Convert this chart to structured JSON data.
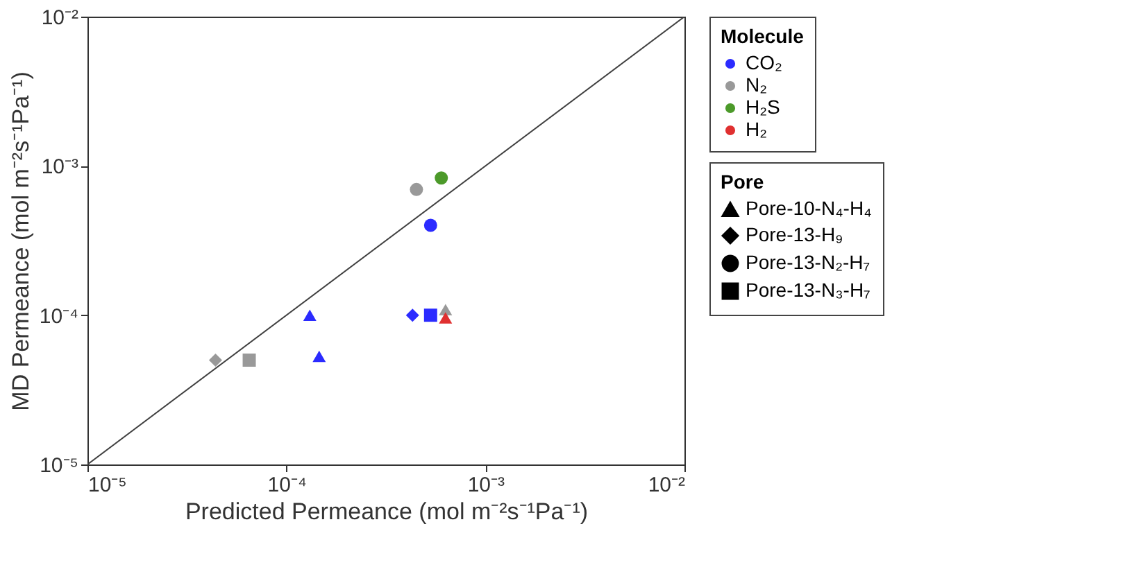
{
  "chart_data": {
    "type": "scatter",
    "xlabel": "Predicted Permeance (mol m⁻²s⁻¹Pa⁻¹)",
    "ylabel": "MD Permeance (mol m⁻²s⁻¹Pa⁻¹)",
    "legend_title": [
      "Molecule",
      "Pore"
    ],
    "log": "xy",
    "xlim": [
      1e-05,
      0.01
    ],
    "ylim": [
      1e-05,
      0.01
    ],
    "xticks": [
      {
        "value": 1e-05,
        "label": "10⁻⁵"
      },
      {
        "value": 0.0001,
        "label": "10⁻⁴"
      },
      {
        "value": 0.001,
        "label": "10⁻³"
      },
      {
        "value": 0.01,
        "label": "10⁻²"
      }
    ],
    "yticks": [
      {
        "value": 1e-05,
        "label": "10⁻⁵"
      },
      {
        "value": 0.0001,
        "label": "10⁻⁴"
      },
      {
        "value": 0.001,
        "label": "10⁻³"
      },
      {
        "value": 0.01,
        "label": "10⁻²"
      }
    ],
    "legend": "right",
    "series": [
      {
        "name": "CO₂",
        "color": "#2b2bff",
        "x": [
          0.000131,
          0.000146,
          0.00043,
          0.00053,
          0.00053
        ],
        "values": [
          0.0001,
          5.3e-05,
          0.0001,
          0.0004,
          0.0001
        ],
        "marker": [
          "triangle",
          "triangle",
          "diamond",
          "circle",
          "square"
        ]
      },
      {
        "name": "N₂",
        "color": "#999999",
        "x": [
          0.00063,
          4.4e-05,
          0.00045,
          6.5e-05
        ],
        "values": [
          0.000109,
          5e-05,
          0.000695,
          5e-05
        ],
        "marker": [
          "triangle",
          "diamond",
          "circle",
          "square"
        ]
      },
      {
        "name": "H₂S",
        "color": "#4c9a2a",
        "x": [
          0.0006
        ],
        "values": [
          0.00083
        ],
        "marker": [
          "circle"
        ]
      },
      {
        "name": "H₂",
        "color": "#e03030",
        "x": [
          0.00063
        ],
        "values": [
          9.6e-05
        ],
        "marker": [
          "triangle"
        ]
      },
      {
        "name": "Pore-10-N₄-H₄",
        "marker": "triangle",
        "color": "#000000"
      },
      {
        "name": "Pore-13-H₉",
        "marker": "diamond",
        "color": "#000000"
      },
      {
        "name": "Pore-13-N₂-H₇",
        "marker": "circle",
        "color": "#000000"
      },
      {
        "name": "Pore-13-N₃-H₇",
        "marker": "square",
        "color": "#000000"
      },
      {
        "type": "line",
        "color": "#404040",
        "x": [
          1e-05,
          0.01
        ],
        "values": [
          1e-05,
          0.01
        ]
      }
    ]
  }
}
